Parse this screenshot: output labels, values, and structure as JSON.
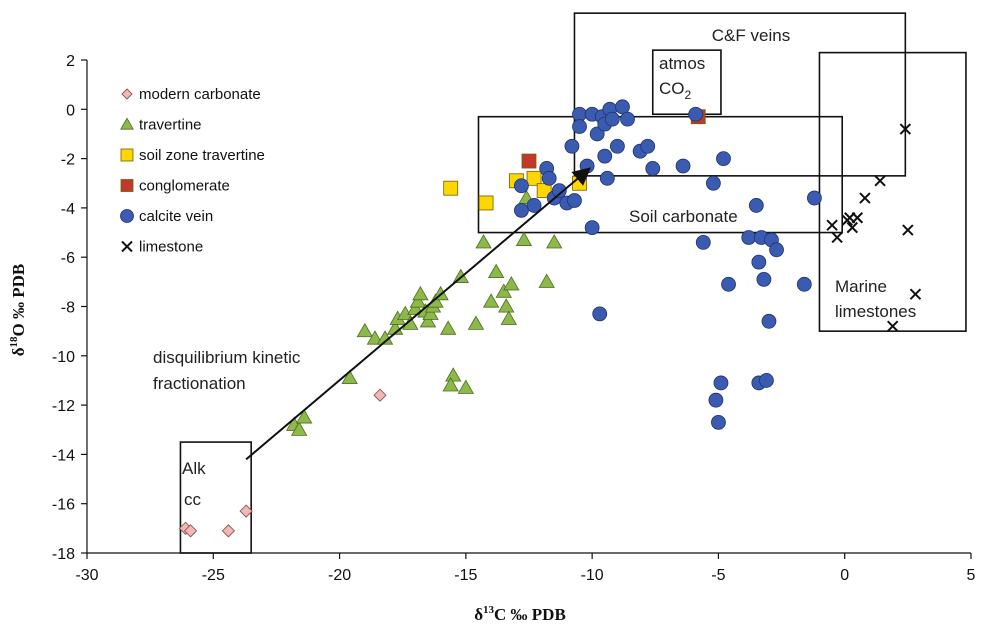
{
  "chart_data": {
    "type": "scatter",
    "title": "",
    "xlabel": {
      "prefix": "δ",
      "sup": "13",
      "suffix": "C ‰ PDB"
    },
    "ylabel": {
      "prefix": "δ",
      "sup": "18",
      "suffix": "O ‰ PDB"
    },
    "xlim": [
      -30,
      5
    ],
    "ylim": [
      -18,
      2
    ],
    "xticks": [
      -30,
      -25,
      -20,
      -15,
      -10,
      -5,
      0,
      5
    ],
    "yticks": [
      -18,
      -16,
      -14,
      -12,
      -10,
      -8,
      -6,
      -4,
      -2,
      0,
      2
    ],
    "grid": false,
    "legend_position": "top-left",
    "series": [
      {
        "name": "modern carbonate",
        "marker": "diamond",
        "color": "#f2b8b5",
        "points": [
          [
            -26.1,
            -17.0
          ],
          [
            -25.9,
            -17.1
          ],
          [
            -24.4,
            -17.1
          ],
          [
            -23.7,
            -16.3
          ],
          [
            -18.4,
            -11.6
          ]
        ]
      },
      {
        "name": "travertine",
        "marker": "triangle",
        "color": "#8db84a",
        "points": [
          [
            -21.8,
            -12.8
          ],
          [
            -21.6,
            -13.0
          ],
          [
            -21.4,
            -12.5
          ],
          [
            -19.6,
            -10.9
          ],
          [
            -19.0,
            -9.0
          ],
          [
            -18.6,
            -9.3
          ],
          [
            -18.2,
            -9.3
          ],
          [
            -17.8,
            -8.9
          ],
          [
            -17.7,
            -8.5
          ],
          [
            -17.4,
            -8.3
          ],
          [
            -17.2,
            -8.7
          ],
          [
            -17.0,
            -8.1
          ],
          [
            -16.9,
            -7.8
          ],
          [
            -16.8,
            -7.5
          ],
          [
            -16.6,
            -8.2
          ],
          [
            -16.5,
            -8.6
          ],
          [
            -16.4,
            -8.3
          ],
          [
            -16.3,
            -8.0
          ],
          [
            -16.2,
            -7.8
          ],
          [
            -16.0,
            -7.5
          ],
          [
            -15.7,
            -8.9
          ],
          [
            -15.5,
            -10.8
          ],
          [
            -15.6,
            -11.2
          ],
          [
            -15.0,
            -11.3
          ],
          [
            -15.2,
            -6.8
          ],
          [
            -14.6,
            -8.7
          ],
          [
            -14.3,
            -5.4
          ],
          [
            -14.0,
            -7.8
          ],
          [
            -13.8,
            -6.6
          ],
          [
            -13.5,
            -7.4
          ],
          [
            -13.4,
            -8.0
          ],
          [
            -13.3,
            -8.5
          ],
          [
            -13.2,
            -7.1
          ],
          [
            -12.7,
            -5.3
          ],
          [
            -12.6,
            -3.6
          ],
          [
            -11.8,
            -7.0
          ],
          [
            -11.5,
            -5.4
          ]
        ]
      },
      {
        "name": "soil zone travertine",
        "marker": "square",
        "color": "#ffd700",
        "points": [
          [
            -15.6,
            -3.2
          ],
          [
            -14.2,
            -3.8
          ],
          [
            -13.0,
            -2.9
          ],
          [
            -12.3,
            -2.8
          ],
          [
            -11.9,
            -3.3
          ],
          [
            -10.5,
            -3.0
          ]
        ]
      },
      {
        "name": "conglomerate",
        "marker": "square",
        "color": "#c0392b",
        "points": [
          [
            -12.5,
            -2.1
          ],
          [
            -5.8,
            -0.3
          ]
        ]
      },
      {
        "name": "calcite vein",
        "marker": "circle",
        "color": "#3a5bb0",
        "points": [
          [
            -12.8,
            -4.1
          ],
          [
            -12.8,
            -3.1
          ],
          [
            -12.3,
            -3.9
          ],
          [
            -11.8,
            -2.4
          ],
          [
            -11.7,
            -2.8
          ],
          [
            -11.5,
            -3.6
          ],
          [
            -11.3,
            -3.3
          ],
          [
            -11.0,
            -3.8
          ],
          [
            -10.7,
            -3.7
          ],
          [
            -10.8,
            -1.5
          ],
          [
            -10.5,
            -0.2
          ],
          [
            -10.5,
            -0.7
          ],
          [
            -10.2,
            -2.3
          ],
          [
            -10.0,
            -4.8
          ],
          [
            -10.0,
            -0.2
          ],
          [
            -9.8,
            -1.0
          ],
          [
            -9.7,
            -8.3
          ],
          [
            -9.6,
            -0.3
          ],
          [
            -9.5,
            -0.6
          ],
          [
            -9.3,
            0.0
          ],
          [
            -9.2,
            -0.4
          ],
          [
            -9.0,
            -1.5
          ],
          [
            -9.5,
            -1.9
          ],
          [
            -9.4,
            -2.8
          ],
          [
            -8.8,
            0.1
          ],
          [
            -8.6,
            -0.4
          ],
          [
            -8.1,
            -1.7
          ],
          [
            -7.8,
            -1.5
          ],
          [
            -7.6,
            -2.4
          ],
          [
            -6.4,
            -2.3
          ],
          [
            -5.9,
            -0.2
          ],
          [
            -5.6,
            -5.4
          ],
          [
            -5.2,
            -3.0
          ],
          [
            -5.1,
            -11.8
          ],
          [
            -5.0,
            -12.7
          ],
          [
            -4.9,
            -11.1
          ],
          [
            -4.8,
            -2.0
          ],
          [
            -4.6,
            -7.1
          ],
          [
            -3.8,
            -5.2
          ],
          [
            -3.5,
            -3.9
          ],
          [
            -3.4,
            -6.2
          ],
          [
            -3.4,
            -11.1
          ],
          [
            -3.3,
            -5.2
          ],
          [
            -3.2,
            -6.9
          ],
          [
            -3.1,
            -11.0
          ],
          [
            -3.0,
            -8.6
          ],
          [
            -2.9,
            -5.3
          ],
          [
            -2.7,
            -5.7
          ],
          [
            -1.6,
            -7.1
          ],
          [
            -1.2,
            -3.6
          ]
        ]
      },
      {
        "name": "limestone",
        "marker": "x",
        "color": "#111111",
        "points": [
          [
            -0.5,
            -4.7
          ],
          [
            -0.3,
            -5.2
          ],
          [
            0.1,
            -4.5
          ],
          [
            0.2,
            -4.4
          ],
          [
            0.3,
            -4.8
          ],
          [
            0.5,
            -4.4
          ],
          [
            0.8,
            -3.6
          ],
          [
            1.4,
            -2.9
          ],
          [
            1.9,
            -8.8
          ],
          [
            2.4,
            -0.8
          ],
          [
            2.5,
            -4.9
          ],
          [
            2.8,
            -7.5
          ]
        ]
      }
    ],
    "regions": [
      {
        "name": "alk-cc-box",
        "label": [
          "Alk",
          "cc"
        ],
        "x": [
          -26.3,
          -23.5
        ],
        "y": [
          -18,
          -13.5
        ]
      },
      {
        "name": "soil-carbonate-box",
        "label": [
          "Soil carbonate"
        ],
        "x": [
          -14.5,
          -0.1
        ],
        "y": [
          -5.0,
          -0.3
        ]
      },
      {
        "name": "cf-veins-box",
        "label": [
          "C&F veins"
        ],
        "x": [
          -10.7,
          2.4
        ],
        "y": [
          -2.7,
          3.9
        ]
      },
      {
        "name": "atmos-co2-box",
        "label": [
          "atmos",
          "CO",
          "2"
        ],
        "x": [
          -7.6,
          -4.9
        ],
        "y": [
          -0.2,
          2.4
        ]
      },
      {
        "name": "marine-limestones-box",
        "label": [
          "Marine",
          "limestones"
        ],
        "x": [
          -1.0,
          4.8
        ],
        "y": [
          -9.0,
          2.3
        ]
      }
    ],
    "arrow": {
      "from": [
        -23.7,
        -14.2
      ],
      "to": [
        -10.1,
        -2.4
      ]
    },
    "annotations": [
      "disquilibrium kinetic",
      "fractionation"
    ]
  }
}
